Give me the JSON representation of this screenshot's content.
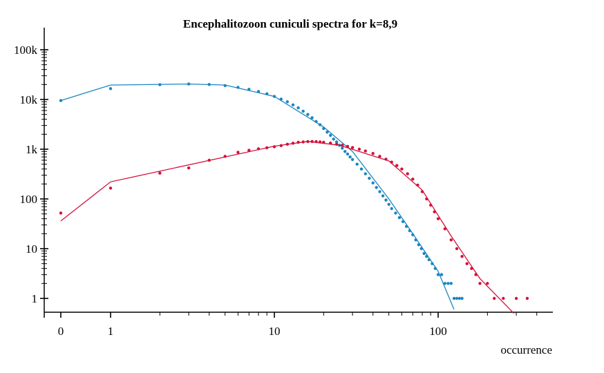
{
  "chart_data": {
    "type": "scatter",
    "title": "Encephalitozoon cuniculi spectra for k=8,9",
    "xlabel": "occurrence",
    "ylabel": "",
    "x_scale": "log (0 shown at left)",
    "y_scale": "log",
    "xlim": [
      0,
      400
    ],
    "ylim": [
      0.5,
      200000
    ],
    "x_ticks": [
      {
        "value": 0,
        "label": "0"
      },
      {
        "value": 1,
        "label": "1"
      },
      {
        "value": 10,
        "label": "10"
      },
      {
        "value": 100,
        "label": "100"
      }
    ],
    "y_ticks": [
      {
        "value": 1,
        "label": "1"
      },
      {
        "value": 10,
        "label": "10"
      },
      {
        "value": 100,
        "label": "100"
      },
      {
        "value": 1000,
        "label": "1k"
      },
      {
        "value": 10000,
        "label": "10k"
      },
      {
        "value": 100000,
        "label": "100k"
      }
    ],
    "grid": false,
    "legend": "none",
    "series": [
      {
        "color": "#1a85c0",
        "points": [
          [
            0,
            9500
          ],
          [
            1,
            16500
          ],
          [
            2,
            19800
          ],
          [
            3,
            20500
          ],
          [
            4,
            20000
          ],
          [
            5,
            19000
          ],
          [
            6,
            17500
          ],
          [
            7,
            16000
          ],
          [
            8,
            14500
          ],
          [
            9,
            13000
          ],
          [
            10,
            11500
          ],
          [
            11,
            10200
          ],
          [
            12,
            9000
          ],
          [
            13,
            7800
          ],
          [
            14,
            6800
          ],
          [
            15,
            5800
          ],
          [
            16,
            5000
          ],
          [
            17,
            4300
          ],
          [
            18,
            3600
          ],
          [
            19,
            3100
          ],
          [
            20,
            2600
          ],
          [
            21,
            2200
          ],
          [
            22,
            1900
          ],
          [
            23,
            1600
          ],
          [
            24,
            1400
          ],
          [
            25,
            1200
          ],
          [
            26,
            1050
          ],
          [
            27,
            900
          ],
          [
            28,
            800
          ],
          [
            29,
            700
          ],
          [
            30,
            620
          ],
          [
            32,
            500
          ],
          [
            34,
            400
          ],
          [
            36,
            320
          ],
          [
            38,
            260
          ],
          [
            40,
            210
          ],
          [
            42,
            170
          ],
          [
            44,
            140
          ],
          [
            46,
            115
          ],
          [
            48,
            95
          ],
          [
            50,
            78
          ],
          [
            52,
            64
          ],
          [
            55,
            52
          ],
          [
            58,
            42
          ],
          [
            61,
            35
          ],
          [
            64,
            28
          ],
          [
            67,
            23
          ],
          [
            70,
            19
          ],
          [
            73,
            15
          ],
          [
            76,
            12
          ],
          [
            79,
            10
          ],
          [
            82,
            8
          ],
          [
            85,
            7
          ],
          [
            88,
            6
          ],
          [
            92,
            5
          ],
          [
            96,
            4
          ],
          [
            100,
            3
          ],
          [
            105,
            3
          ],
          [
            110,
            2
          ],
          [
            115,
            2
          ],
          [
            120,
            2
          ],
          [
            125,
            1
          ],
          [
            130,
            1
          ],
          [
            135,
            1
          ],
          [
            140,
            1
          ]
        ],
        "fit": [
          [
            0,
            9500
          ],
          [
            1,
            19500
          ],
          [
            3,
            20500
          ],
          [
            5,
            19500
          ],
          [
            10,
            11500
          ],
          [
            20,
            2800
          ],
          [
            30,
            900
          ],
          [
            50,
            100
          ],
          [
            70,
            20
          ],
          [
            100,
            3.5
          ],
          [
            125,
            0.6
          ]
        ]
      },
      {
        "color": "#d4103a",
        "points": [
          [
            0,
            52
          ],
          [
            1,
            165
          ],
          [
            2,
            330
          ],
          [
            3,
            420
          ],
          [
            4,
            600
          ],
          [
            5,
            720
          ],
          [
            6,
            870
          ],
          [
            7,
            950
          ],
          [
            8,
            1020
          ],
          [
            9,
            1070
          ],
          [
            10,
            1120
          ],
          [
            11,
            1180
          ],
          [
            12,
            1260
          ],
          [
            13,
            1320
          ],
          [
            14,
            1380
          ],
          [
            15,
            1400
          ],
          [
            16,
            1420
          ],
          [
            17,
            1430
          ],
          [
            18,
            1420
          ],
          [
            19,
            1400
          ],
          [
            20,
            1380
          ],
          [
            22,
            1330
          ],
          [
            24,
            1260
          ],
          [
            26,
            1200
          ],
          [
            28,
            1140
          ],
          [
            30,
            1080
          ],
          [
            33,
            1000
          ],
          [
            36,
            920
          ],
          [
            40,
            820
          ],
          [
            44,
            720
          ],
          [
            48,
            630
          ],
          [
            52,
            550
          ],
          [
            56,
            470
          ],
          [
            60,
            400
          ],
          [
            65,
            320
          ],
          [
            70,
            250
          ],
          [
            75,
            190
          ],
          [
            80,
            140
          ],
          [
            85,
            100
          ],
          [
            90,
            75
          ],
          [
            95,
            55
          ],
          [
            100,
            40
          ],
          [
            110,
            25
          ],
          [
            120,
            15
          ],
          [
            130,
            10
          ],
          [
            140,
            7
          ],
          [
            150,
            5
          ],
          [
            160,
            4
          ],
          [
            170,
            3
          ],
          [
            180,
            2
          ],
          [
            200,
            2
          ],
          [
            220,
            1
          ],
          [
            250,
            1
          ],
          [
            300,
            1
          ],
          [
            350,
            1
          ]
        ],
        "fit": [
          [
            0,
            36
          ],
          [
            1,
            220
          ],
          [
            5,
            700
          ],
          [
            10,
            1150
          ],
          [
            16,
            1430
          ],
          [
            25,
            1200
          ],
          [
            50,
            580
          ],
          [
            80,
            150
          ],
          [
            120,
            18
          ],
          [
            180,
            2.5
          ],
          [
            290,
            0.5
          ]
        ]
      }
    ]
  }
}
